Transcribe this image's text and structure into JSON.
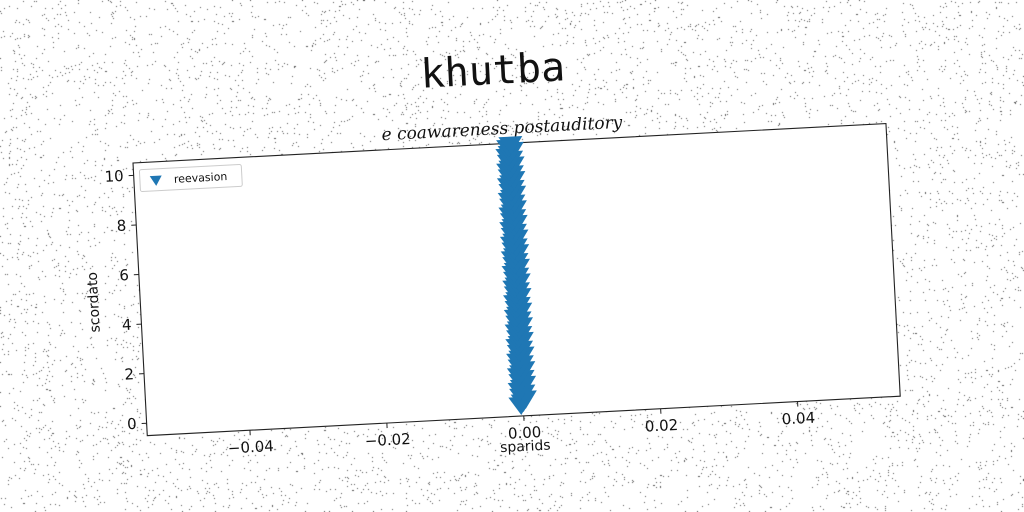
{
  "chart_data": {
    "type": "scatter",
    "title": "khutba",
    "subtitle": "e coawareness postauditory",
    "xlabel": "sparids",
    "ylabel": "scordato",
    "xlim": [
      -0.055,
      0.055
    ],
    "ylim": [
      -0.5,
      10.5
    ],
    "xticks": [
      "−0.04",
      "−0.02",
      "0.00",
      "0.02",
      "0.04"
    ],
    "xtick_values": [
      -0.04,
      -0.02,
      0.0,
      0.02,
      0.04
    ],
    "yticks": [
      "0",
      "2",
      "4",
      "6",
      "8",
      "10"
    ],
    "ytick_values": [
      0,
      2,
      4,
      6,
      8,
      10
    ],
    "grid": false,
    "legend_position": "top-left",
    "series": [
      {
        "name": "reevasion",
        "marker": "triangle-down",
        "color": "#1f77b4",
        "x_value": 0.0,
        "y_from": 0.0,
        "y_to": 10.5,
        "point_count": 90
      }
    ]
  }
}
